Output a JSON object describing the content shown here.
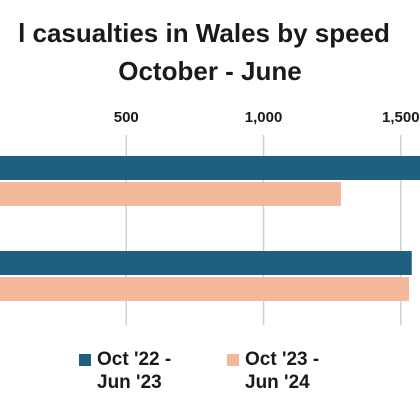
{
  "chart_data": {
    "type": "bar",
    "orientation": "horizontal",
    "title_lines": [
      "l casualties in Wales by speed",
      "October - June"
    ],
    "x_axis_position": "top",
    "x_ticks": [
      500,
      1000,
      1500
    ],
    "x_tick_labels": [
      "500",
      "1,000",
      "1,500"
    ],
    "xlim": [
      40,
      1570
    ],
    "grid": true,
    "categories": [
      "",
      ""
    ],
    "series": [
      {
        "name": "Oct '22 - Jun '23",
        "color": "#1f5f80",
        "values": [
          1575,
          1540
        ]
      },
      {
        "name": "Oct '23 - Jun '24",
        "color": "#f4b99b",
        "values": [
          1282,
          1530
        ]
      }
    ],
    "legend_position": "bottom"
  }
}
